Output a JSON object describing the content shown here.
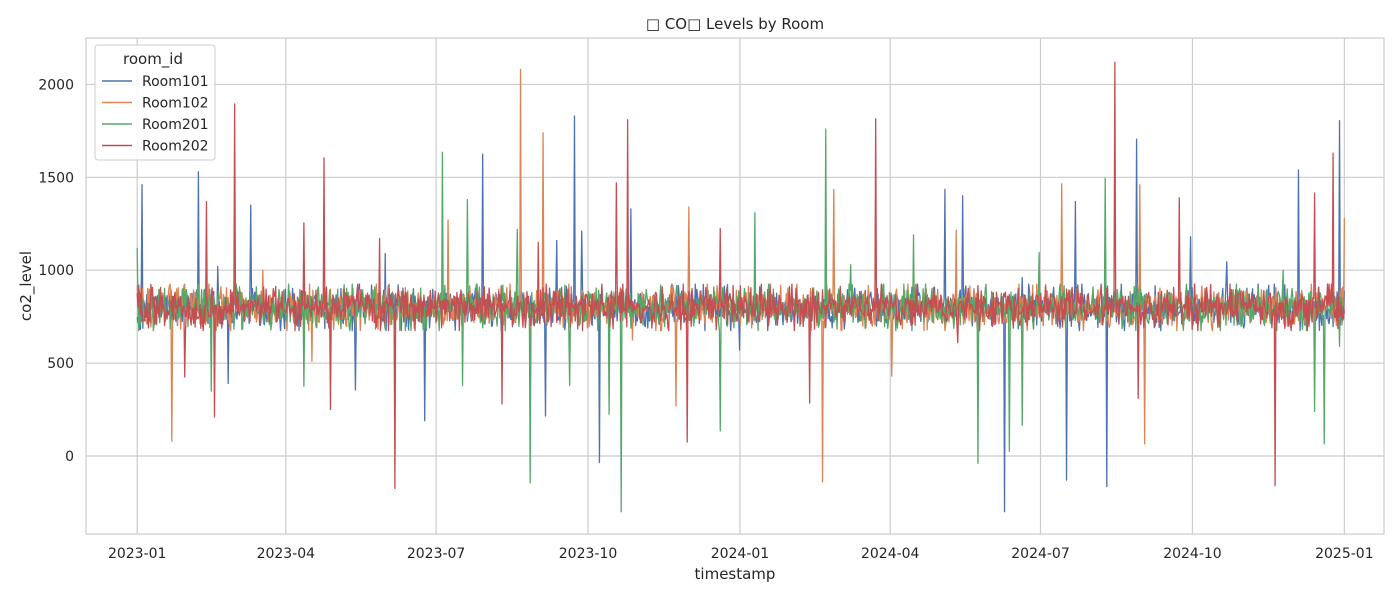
{
  "chart_data": {
    "type": "line",
    "title": "□ CO□ Levels by Room",
    "xlabel": "timestamp",
    "ylabel": "co2_level",
    "x_range": [
      "2022-12-01",
      "2025-01-25"
    ],
    "ylim": [
      -420,
      2250
    ],
    "grid": true,
    "legend": {
      "title": "room_id",
      "placement": "top-left",
      "entries": [
        "Room101",
        "Room102",
        "Room201",
        "Room202"
      ]
    },
    "x_ticks": [
      {
        "value": "2023-01-01",
        "label": "2023-01"
      },
      {
        "value": "2023-04-01",
        "label": "2023-04"
      },
      {
        "value": "2023-07-01",
        "label": "2023-07"
      },
      {
        "value": "2023-10-01",
        "label": "2023-10"
      },
      {
        "value": "2024-01-01",
        "label": "2024-01"
      },
      {
        "value": "2024-04-01",
        "label": "2024-04"
      },
      {
        "value": "2024-07-01",
        "label": "2024-07"
      },
      {
        "value": "2024-10-01",
        "label": "2024-10"
      },
      {
        "value": "2025-01-01",
        "label": "2025-01"
      }
    ],
    "y_ticks": [
      0,
      500,
      1000,
      1500,
      2000
    ],
    "baseline": {
      "start": "2023-01-01",
      "end": "2025-01-01",
      "typical_range": [
        700,
        900
      ],
      "center": 800
    },
    "series": [
      {
        "name": "Room101",
        "color": "#4c72b0",
        "spikes": [
          {
            "x": "2023-01-04",
            "y": 1460
          },
          {
            "x": "2023-02-07",
            "y": 1530
          },
          {
            "x": "2023-02-19",
            "y": 1020
          },
          {
            "x": "2023-02-25",
            "y": 390
          },
          {
            "x": "2023-03-11",
            "y": 1350
          },
          {
            "x": "2023-05-13",
            "y": 355
          },
          {
            "x": "2023-05-31",
            "y": 1090
          },
          {
            "x": "2023-06-24",
            "y": 190
          },
          {
            "x": "2023-07-29",
            "y": 1625
          },
          {
            "x": "2023-09-05",
            "y": 215
          },
          {
            "x": "2023-09-12",
            "y": 1160
          },
          {
            "x": "2023-09-23",
            "y": 1830
          },
          {
            "x": "2023-09-27",
            "y": 1210
          },
          {
            "x": "2023-10-08",
            "y": -35
          },
          {
            "x": "2023-10-27",
            "y": 1330
          },
          {
            "x": "2024-01-01",
            "y": 570
          },
          {
            "x": "2024-05-04",
            "y": 1435
          },
          {
            "x": "2024-05-15",
            "y": 1400
          },
          {
            "x": "2024-06-09",
            "y": -300
          },
          {
            "x": "2024-06-20",
            "y": 960
          },
          {
            "x": "2024-07-17",
            "y": -130
          },
          {
            "x": "2024-07-22",
            "y": 1370
          },
          {
            "x": "2024-08-10",
            "y": -165
          },
          {
            "x": "2024-08-28",
            "y": 1705
          },
          {
            "x": "2024-09-30",
            "y": 1180
          },
          {
            "x": "2024-10-22",
            "y": 1045
          },
          {
            "x": "2024-12-04",
            "y": 1540
          },
          {
            "x": "2024-12-29",
            "y": 1805
          }
        ]
      },
      {
        "name": "Room102",
        "color": "#dd8452",
        "spikes": [
          {
            "x": "2023-01-22",
            "y": 80
          },
          {
            "x": "2023-03-01",
            "y": 1130
          },
          {
            "x": "2023-03-18",
            "y": 1000
          },
          {
            "x": "2023-04-17",
            "y": 510
          },
          {
            "x": "2023-07-08",
            "y": 1270
          },
          {
            "x": "2023-08-21",
            "y": 2080
          },
          {
            "x": "2023-08-27",
            "y": 260
          },
          {
            "x": "2023-09-04",
            "y": 1740
          },
          {
            "x": "2023-10-28",
            "y": 625
          },
          {
            "x": "2023-11-23",
            "y": 270
          },
          {
            "x": "2023-12-01",
            "y": 1340
          },
          {
            "x": "2024-02-20",
            "y": -140
          },
          {
            "x": "2024-02-27",
            "y": 1435
          },
          {
            "x": "2024-04-02",
            "y": 430
          },
          {
            "x": "2024-05-11",
            "y": 1215
          },
          {
            "x": "2024-07-14",
            "y": 1465
          },
          {
            "x": "2024-08-30",
            "y": 1460
          },
          {
            "x": "2024-09-02",
            "y": 65
          },
          {
            "x": "2025-01-01",
            "y": 1280
          }
        ]
      },
      {
        "name": "Room201",
        "color": "#55a868",
        "spikes": [
          {
            "x": "2023-01-01",
            "y": 1120
          },
          {
            "x": "2023-02-15",
            "y": 350
          },
          {
            "x": "2023-04-12",
            "y": 375
          },
          {
            "x": "2023-07-05",
            "y": 1635
          },
          {
            "x": "2023-07-17",
            "y": 380
          },
          {
            "x": "2023-07-20",
            "y": 1380
          },
          {
            "x": "2023-08-19",
            "y": 1220
          },
          {
            "x": "2023-08-27",
            "y": -145
          },
          {
            "x": "2023-09-20",
            "y": 380
          },
          {
            "x": "2023-10-14",
            "y": 225
          },
          {
            "x": "2023-10-21",
            "y": -300
          },
          {
            "x": "2023-12-20",
            "y": 135
          },
          {
            "x": "2024-01-10",
            "y": 1310
          },
          {
            "x": "2024-02-22",
            "y": 1760
          },
          {
            "x": "2024-03-08",
            "y": 1030
          },
          {
            "x": "2024-04-15",
            "y": 1190
          },
          {
            "x": "2024-05-24",
            "y": -40
          },
          {
            "x": "2024-06-12",
            "y": 25
          },
          {
            "x": "2024-06-20",
            "y": 165
          },
          {
            "x": "2024-06-30",
            "y": 1095
          },
          {
            "x": "2024-08-09",
            "y": 1495
          },
          {
            "x": "2024-11-25",
            "y": 1000
          },
          {
            "x": "2024-12-14",
            "y": 240
          },
          {
            "x": "2024-12-20",
            "y": 65
          },
          {
            "x": "2024-12-29",
            "y": 590
          }
        ]
      },
      {
        "name": "Room202",
        "color": "#c44e52",
        "spikes": [
          {
            "x": "2023-01-30",
            "y": 425
          },
          {
            "x": "2023-02-12",
            "y": 1370
          },
          {
            "x": "2023-02-17",
            "y": 210
          },
          {
            "x": "2023-03-01",
            "y": 1895
          },
          {
            "x": "2023-04-12",
            "y": 1255
          },
          {
            "x": "2023-04-24",
            "y": 1605
          },
          {
            "x": "2023-04-28",
            "y": 250
          },
          {
            "x": "2023-05-28",
            "y": 1170
          },
          {
            "x": "2023-06-06",
            "y": -175
          },
          {
            "x": "2023-08-10",
            "y": 280
          },
          {
            "x": "2023-09-01",
            "y": 1150
          },
          {
            "x": "2023-10-18",
            "y": 1470
          },
          {
            "x": "2023-10-25",
            "y": 1810
          },
          {
            "x": "2023-11-30",
            "y": 75
          },
          {
            "x": "2023-12-20",
            "y": 1225
          },
          {
            "x": "2024-02-12",
            "y": 285
          },
          {
            "x": "2024-03-23",
            "y": 1815
          },
          {
            "x": "2024-05-12",
            "y": 610
          },
          {
            "x": "2024-08-15",
            "y": 2120
          },
          {
            "x": "2024-08-29",
            "y": 310
          },
          {
            "x": "2024-09-23",
            "y": 1390
          },
          {
            "x": "2024-11-20",
            "y": -160
          },
          {
            "x": "2024-12-14",
            "y": 1415
          },
          {
            "x": "2024-12-25",
            "y": 1630
          }
        ]
      }
    ]
  }
}
